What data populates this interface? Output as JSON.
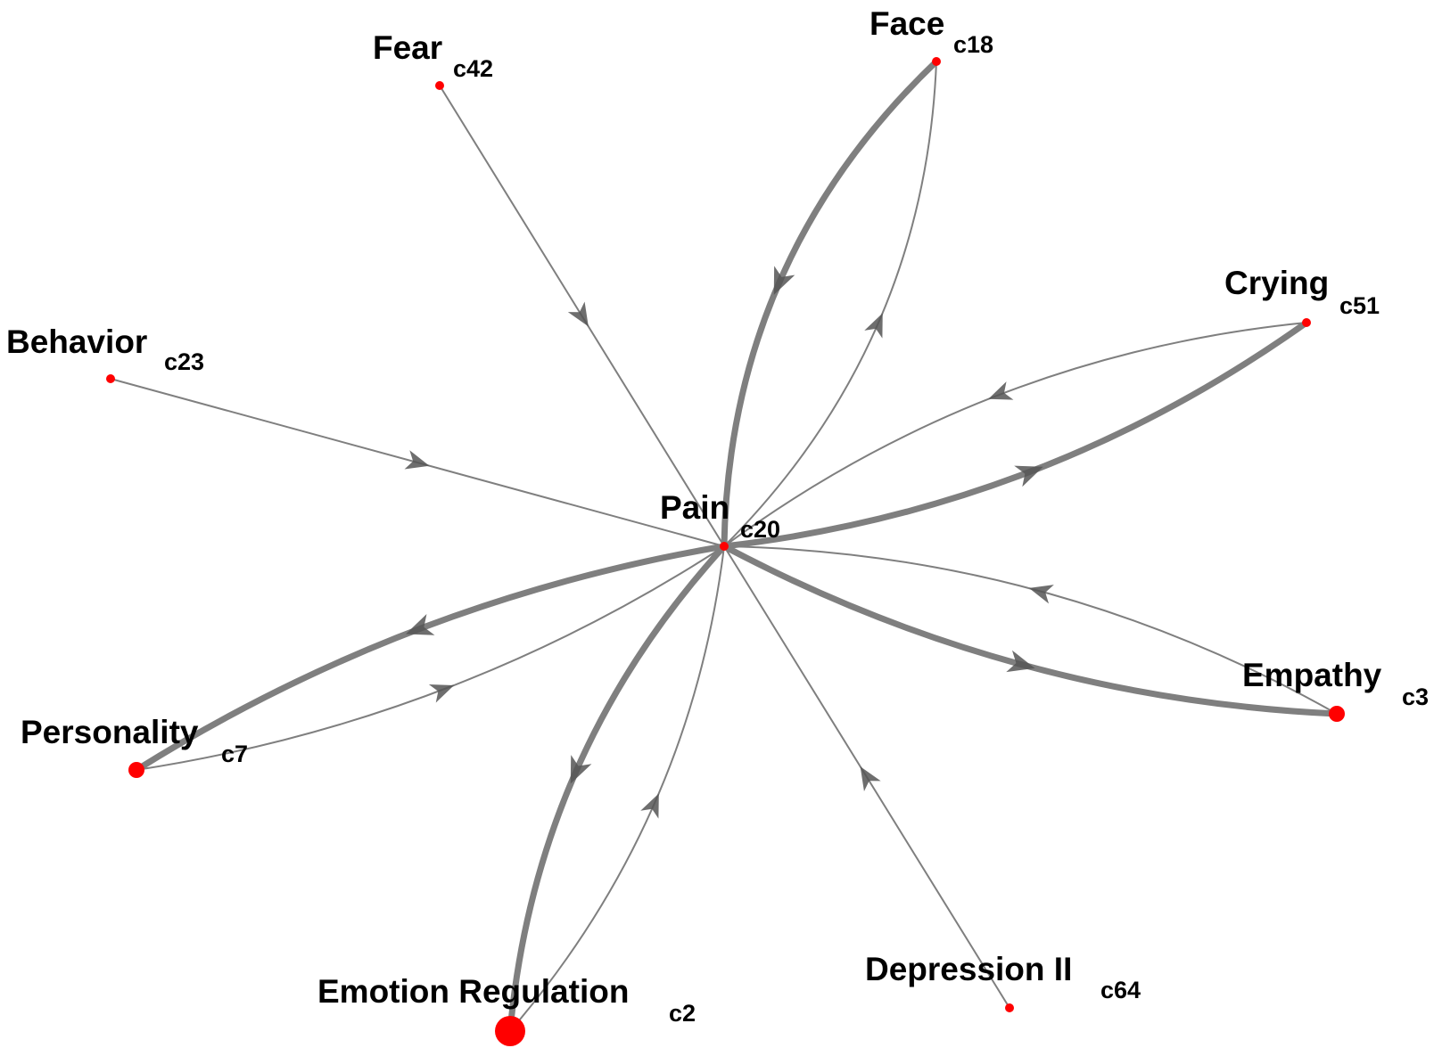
{
  "colors": {
    "edge": "#7f7f7f",
    "arrow": "#555555",
    "node": "#ff0000",
    "label": "#000000"
  },
  "nodes": [
    {
      "id": "pain",
      "name": "Pain",
      "code": "c20",
      "size": "small"
    },
    {
      "id": "fear",
      "name": "Fear",
      "code": "c42",
      "size": "small"
    },
    {
      "id": "face",
      "name": "Face",
      "code": "c18",
      "size": "small"
    },
    {
      "id": "crying",
      "name": "Crying",
      "code": "c51",
      "size": "small"
    },
    {
      "id": "behavior",
      "name": "Behavior",
      "code": "c23",
      "size": "small"
    },
    {
      "id": "empathy",
      "name": "Empathy",
      "code": "c3",
      "size": "medium"
    },
    {
      "id": "personality",
      "name": "Personality",
      "code": "c7",
      "size": "medium"
    },
    {
      "id": "emotion-regulation",
      "name": "Emotion Regulation",
      "code": "c2",
      "size": "large"
    },
    {
      "id": "depression-ii",
      "name": "Depression II",
      "code": "c64",
      "size": "small"
    }
  ],
  "edges": [
    {
      "from": "fear",
      "to": "pain",
      "weight": "thin"
    },
    {
      "from": "behavior",
      "to": "pain",
      "weight": "thin"
    },
    {
      "from": "depression-ii",
      "to": "pain",
      "weight": "thin"
    },
    {
      "from": "face",
      "to": "pain",
      "weight": "thick"
    },
    {
      "from": "pain",
      "to": "face",
      "weight": "thin"
    },
    {
      "from": "pain",
      "to": "crying",
      "weight": "thick"
    },
    {
      "from": "crying",
      "to": "pain",
      "weight": "thin"
    },
    {
      "from": "pain",
      "to": "empathy",
      "weight": "thick"
    },
    {
      "from": "empathy",
      "to": "pain",
      "weight": "thin"
    },
    {
      "from": "pain",
      "to": "personality",
      "weight": "thick"
    },
    {
      "from": "personality",
      "to": "pain",
      "weight": "thin"
    },
    {
      "from": "pain",
      "to": "emotion-regulation",
      "weight": "thick"
    },
    {
      "from": "emotion-regulation",
      "to": "pain",
      "weight": "thin"
    }
  ]
}
